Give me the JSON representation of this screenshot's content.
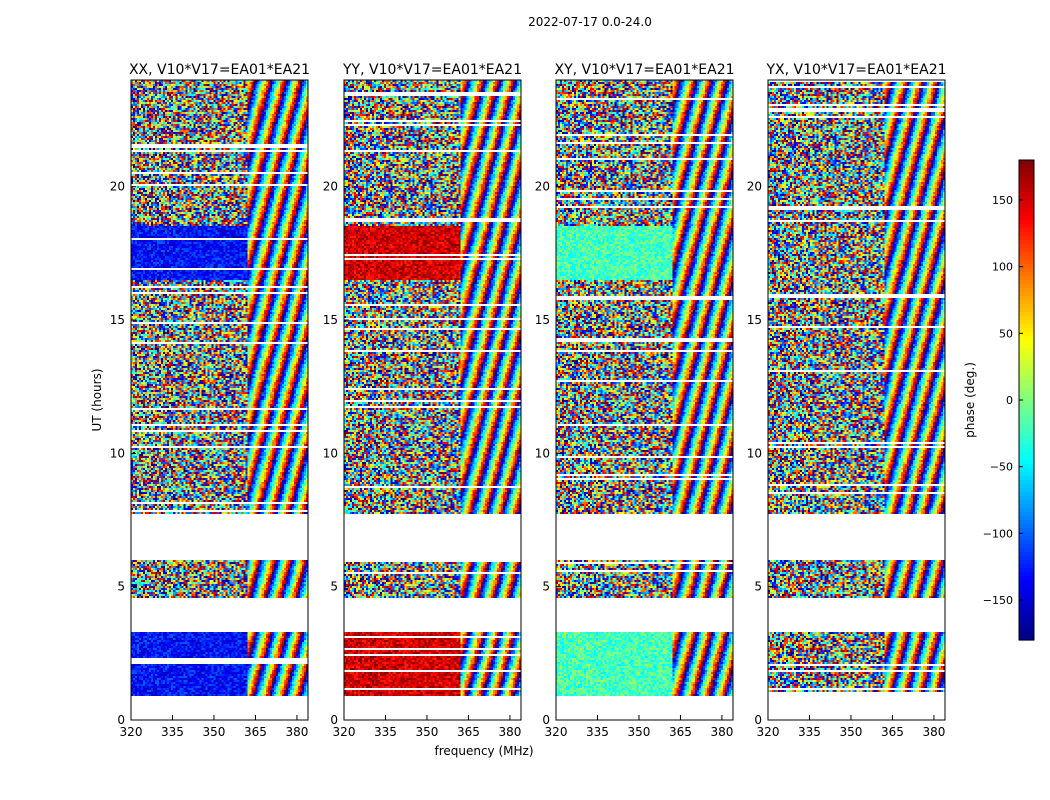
{
  "chart_data": {
    "type": "heatmap",
    "title": "2022-07-17 0.0-24.0",
    "xlabel": "frequency (MHz)",
    "ylabel": "UT (hours)",
    "xlim": [
      320,
      384
    ],
    "ylim": [
      0,
      24
    ],
    "xticks": [
      320,
      335,
      350,
      365,
      380
    ],
    "yticks": [
      0,
      5,
      10,
      15,
      20
    ],
    "panels": [
      {
        "title": "XX, V10*V17=EA01*EA21",
        "flagged_block_phase": -130
      },
      {
        "title": "YY, V10*V17=EA01*EA21",
        "flagged_block_phase": 150
      },
      {
        "title": "XY, V10*V17=EA01*EA21",
        "flagged_block_phase": -20
      },
      {
        "title": "YX, V10*V17=EA01*EA21",
        "flagged_block_phase": null
      }
    ],
    "data_blocks_hours": [
      [
        0.9,
        3.3
      ],
      [
        4.6,
        6.0
      ],
      [
        7.7,
        24.0
      ]
    ],
    "coherent_blocks_hours": [
      [
        0.9,
        3.3
      ],
      [
        16.5,
        18.5
      ]
    ],
    "colorbar": {
      "label": "phase (deg.)",
      "range": [
        -180,
        180
      ],
      "ticks": [
        -150,
        -100,
        -50,
        0,
        50,
        100,
        150
      ]
    }
  }
}
